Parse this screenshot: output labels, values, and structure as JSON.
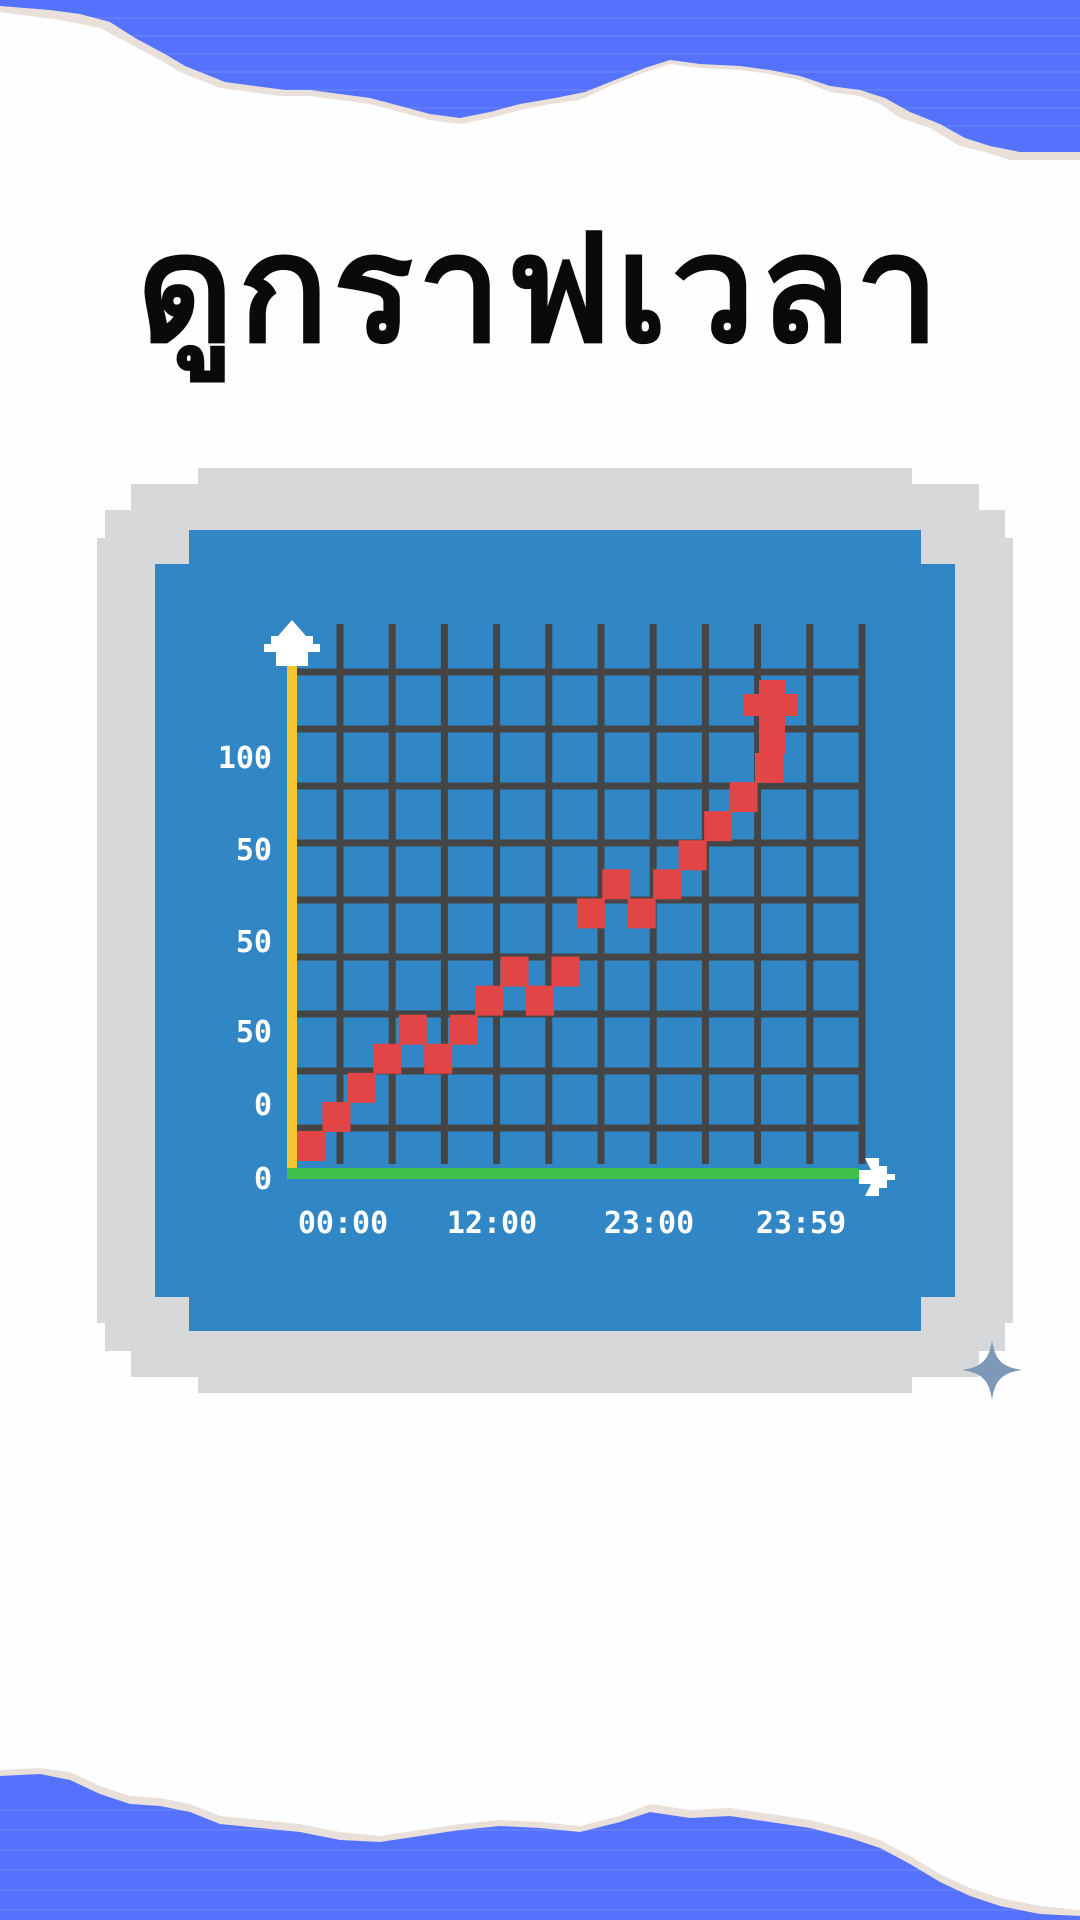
{
  "page": {
    "title": "ดูกราฟเวลา",
    "colors": {
      "accent_blue": "#5472fb",
      "paper_edge": "#e9e0da",
      "frame_gray": "#d6d8d9",
      "panel_blue": "#3186c6",
      "grid_dark": "#454545",
      "trend_red": "#e14545",
      "y_axis_yellow": "#f5c531",
      "x_axis_green": "#3ec04a",
      "label_white": "#ffffff",
      "sparkle": "#7e98b8"
    }
  },
  "chart_data": {
    "type": "line",
    "title": "",
    "xlabel": "",
    "ylabel": "",
    "x_tick_labels": [
      "00:00",
      "12:00",
      "23:00",
      "23:59"
    ],
    "y_tick_labels": [
      "0",
      "0",
      "50",
      "50",
      "50",
      "100"
    ],
    "grid": true,
    "series": [
      {
        "style": "pixel-staircase-arrow",
        "x": [
          0,
          1,
          2,
          3,
          4,
          5,
          6,
          7,
          8,
          9,
          10,
          11,
          12,
          13,
          14,
          15,
          16,
          17,
          18
        ],
        "y": [
          0,
          1,
          2,
          3,
          4,
          3,
          4,
          5,
          6,
          5,
          6,
          8,
          9,
          8,
          9,
          10,
          11,
          12,
          13
        ]
      }
    ]
  }
}
